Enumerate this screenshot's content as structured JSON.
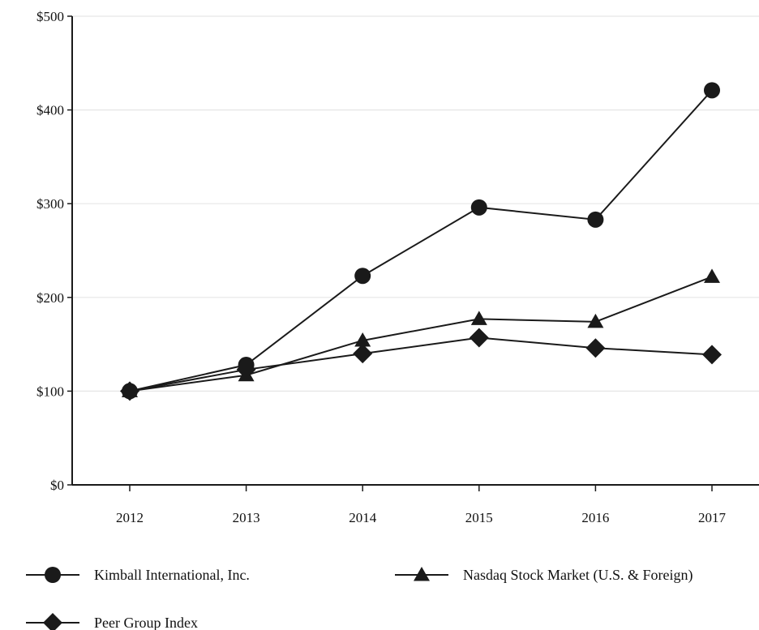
{
  "chart_data": {
    "type": "line",
    "title": "",
    "xlabel": "",
    "ylabel": "",
    "categories": [
      "2012",
      "2013",
      "2014",
      "2015",
      "2016",
      "2017"
    ],
    "ylim": [
      0,
      500
    ],
    "yticks": [
      0,
      100,
      200,
      300,
      400,
      500
    ],
    "ytick_labels": [
      "$0",
      "$100",
      "$200",
      "$300",
      "$400",
      "$500"
    ],
    "grid": true,
    "legend_position": "bottom",
    "series": [
      {
        "name": "Kimball International, Inc.",
        "marker": "circle",
        "values": [
          100,
          128,
          223,
          296,
          283,
          421
        ]
      },
      {
        "name": "Nasdaq Stock Market (U.S. & Foreign)",
        "marker": "triangle",
        "values": [
          100,
          117,
          154,
          177,
          174,
          222
        ]
      },
      {
        "name": "Peer Group Index",
        "marker": "diamond",
        "values": [
          100,
          123,
          140,
          157,
          146,
          139
        ]
      }
    ],
    "colors": {
      "line": "#1a1a1a",
      "grid": "#e6e6e6",
      "axis": "#1a1a1a"
    }
  }
}
